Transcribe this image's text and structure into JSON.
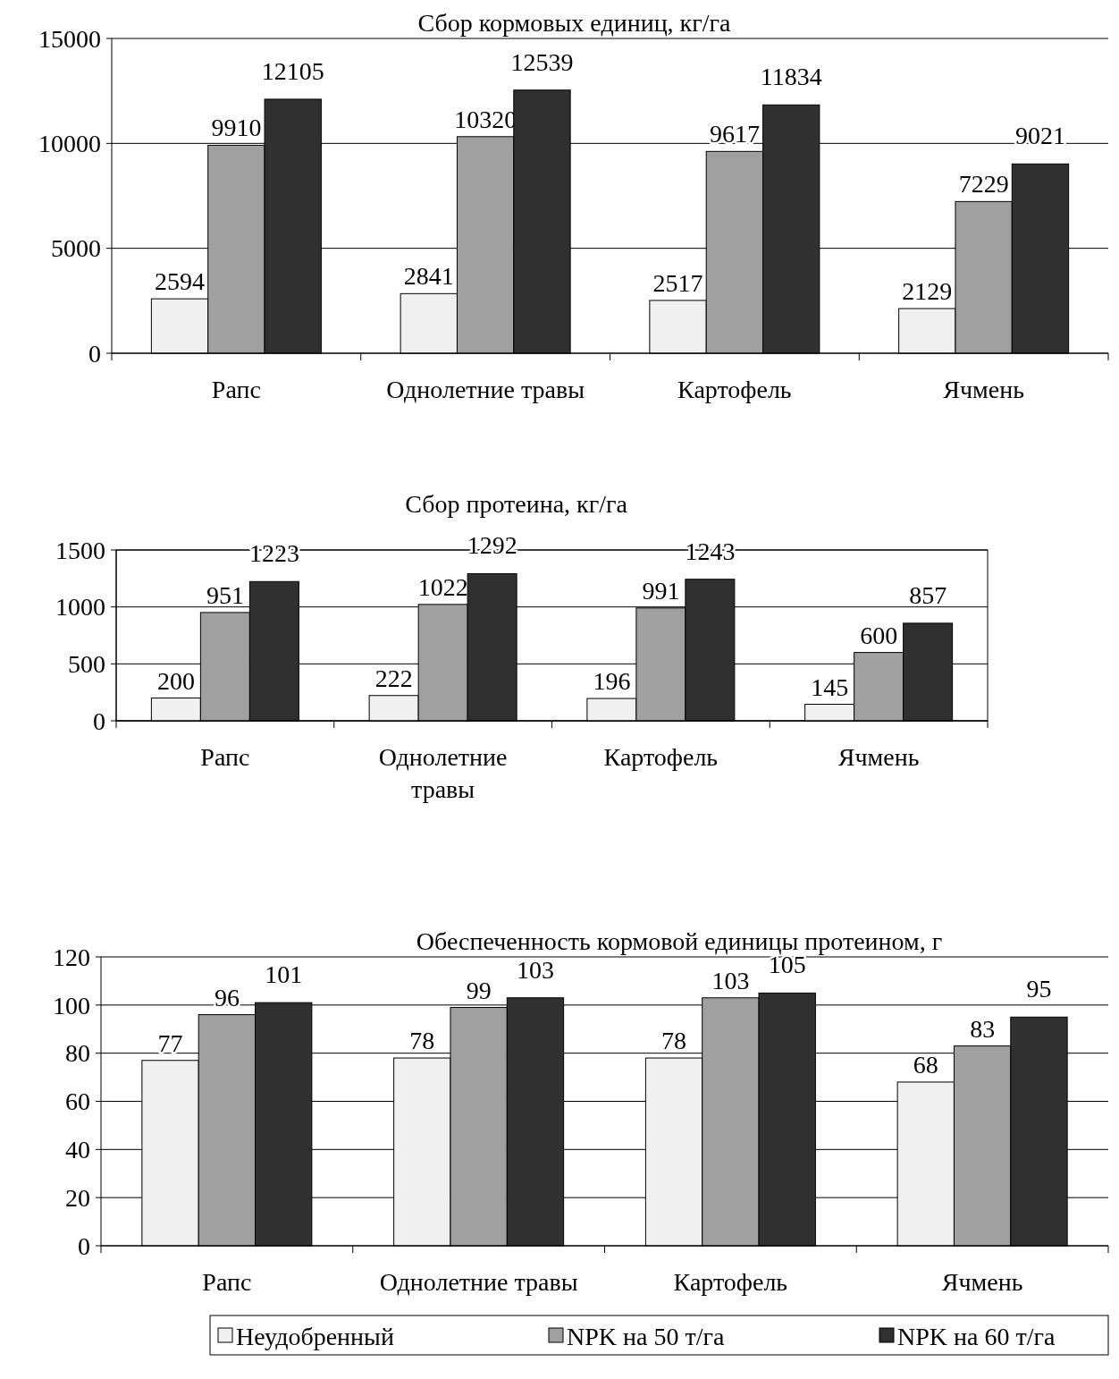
{
  "chart_data": [
    {
      "type": "bar",
      "title": "Сбор кормовых единиц, кг/га",
      "categories": [
        "Рапс",
        "Однолетние травы",
        "Картофель",
        "Ячмень"
      ],
      "series": [
        {
          "color": "#f0f0f0",
          "values": [
            2594,
            2841,
            2517,
            2129
          ]
        },
        {
          "color": "#a0a0a0",
          "values": [
            9910,
            10320,
            9617,
            7229
          ]
        },
        {
          "color": "#303030",
          "values": [
            12105,
            12539,
            11834,
            9021
          ]
        }
      ],
      "ylim": [
        0,
        15000
      ],
      "yticks": [
        0,
        5000,
        10000,
        15000
      ],
      "grid": "y",
      "data_labels": true,
      "legend": false
    },
    {
      "type": "bar",
      "title": "Сбор протеина, кг/га",
      "categories": [
        "Рапс",
        "Однолетние травы",
        "Картофель",
        "Ячмень"
      ],
      "series": [
        {
          "color": "#f0f0f0",
          "values": [
            200,
            222,
            196,
            145
          ]
        },
        {
          "color": "#a0a0a0",
          "values": [
            951,
            1022,
            991,
            600
          ]
        },
        {
          "color": "#303030",
          "values": [
            1223,
            1292,
            1243,
            857
          ]
        }
      ],
      "ylim": [
        0,
        1500
      ],
      "yticks": [
        0,
        500,
        1000,
        1500
      ],
      "grid": "y",
      "data_labels": true,
      "legend": false
    },
    {
      "type": "bar",
      "title": "Обеспеченность кормовой единицы протеином, г",
      "categories": [
        "Рапс",
        "Однолетние травы",
        "Картофель",
        "Ячмень"
      ],
      "series": [
        {
          "name": "Неудобренный",
          "color": "#f0f0f0",
          "values": [
            77,
            78,
            78,
            68
          ]
        },
        {
          "name": "NPK на 50 т/га",
          "color": "#a0a0a0",
          "values": [
            96,
            99,
            103,
            83
          ]
        },
        {
          "name": "NPK на 60 т/га",
          "color": "#303030",
          "values": [
            101,
            103,
            105,
            95
          ]
        }
      ],
      "ylim": [
        0,
        120
      ],
      "yticks": [
        0,
        20,
        40,
        60,
        80,
        100,
        120
      ],
      "grid": "y",
      "data_labels": true,
      "legend": "bottom"
    }
  ]
}
